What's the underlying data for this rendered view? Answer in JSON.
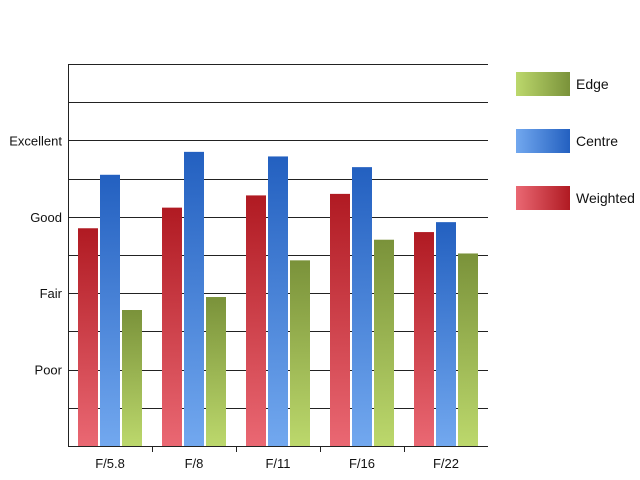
{
  "chart_data": {
    "type": "bar",
    "title": "",
    "xlabel": "",
    "ylabel": "",
    "categories": [
      "F/5.8",
      "F/8",
      "F/11",
      "F/16",
      "F/22"
    ],
    "y_tick_labels": [
      {
        "value": 1,
        "label": "Poor"
      },
      {
        "value": 2,
        "label": "Fair"
      },
      {
        "value": 3,
        "label": "Good"
      },
      {
        "value": 4,
        "label": "Excellent"
      }
    ],
    "ylim": [
      0,
      5
    ],
    "grid": true,
    "legend_position": "right",
    "series": [
      {
        "name": "Weighted",
        "values": [
          2.85,
          3.12,
          3.28,
          3.3,
          2.8
        ],
        "colors": {
          "top": "#b01a22",
          "bottom": "#ea6873"
        }
      },
      {
        "name": "Centre",
        "values": [
          3.55,
          3.85,
          3.79,
          3.65,
          2.93
        ],
        "colors": {
          "top": "#2360c0",
          "bottom": "#72a8ef"
        }
      },
      {
        "name": "Edge",
        "values": [
          1.78,
          1.95,
          2.43,
          2.7,
          2.52
        ],
        "colors": {
          "top": "#7a923a",
          "bottom": "#bcd86c"
        }
      }
    ],
    "legend_order": [
      "Edge",
      "Centre",
      "Weighted"
    ]
  }
}
